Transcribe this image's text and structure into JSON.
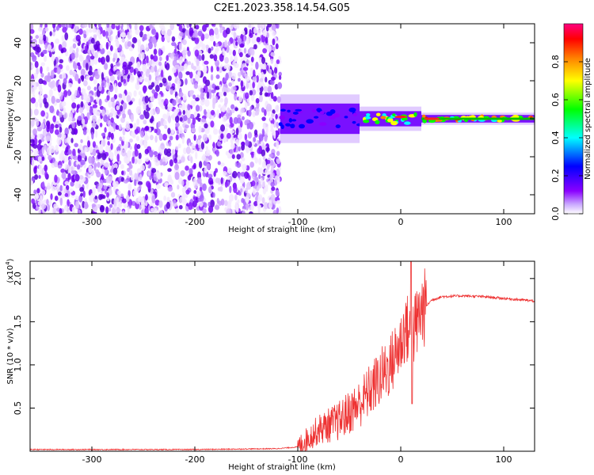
{
  "title": "C2E1.2023.358.14.54.G05",
  "chart_data": [
    {
      "type": "heatmap",
      "xlabel": "Height of straight line (km)",
      "ylabel": "Frequency (Hz)",
      "xlim": [
        -360,
        130
      ],
      "ylim": [
        -50,
        50
      ],
      "x_ticks": [
        -300,
        -200,
        -100,
        0,
        100
      ],
      "y_ticks": [
        -40,
        -20,
        0,
        20,
        40
      ],
      "x_tick_labels": [
        "-300",
        "-200",
        "-100",
        "0",
        "100"
      ],
      "y_tick_labels": [
        "-40",
        "-20",
        "0",
        "20",
        "40"
      ],
      "noise_region_x": [
        -360,
        -117
      ],
      "signal_band": {
        "center_hz": 0,
        "segments": [
          {
            "x_start": -117,
            "x_end": -40,
            "half_width_hz": 8,
            "peak_amplitude": 0.4
          },
          {
            "x_start": -40,
            "x_end": 20,
            "half_width_hz": 4,
            "peak_amplitude": 0.85
          },
          {
            "x_start": 20,
            "x_end": 130,
            "half_width_hz": 2,
            "peak_amplitude": 0.95
          }
        ]
      },
      "colorbar": {
        "label": "Normalized spectral amplitude",
        "range": [
          0,
          1
        ],
        "ticks": [
          0.0,
          0.2,
          0.4,
          0.6,
          0.8
        ],
        "tick_labels": [
          "0.0",
          "0.2",
          "0.4",
          "0.6",
          "0.8"
        ],
        "colors": [
          "#ffffff",
          "#8a00ff",
          "#0000ff",
          "#00ffff",
          "#00ff00",
          "#ffff00",
          "#ff8000",
          "#ff0000",
          "#ff0080"
        ]
      },
      "grid": false
    },
    {
      "type": "line",
      "xlabel": "Height of straight line (km)",
      "ylabel": "SNR (10 * v/v)",
      "y_multiplier": "(x10",
      "y_multiplier_exp": "4",
      "y_multiplier_close": ")",
      "xlim": [
        -360,
        130
      ],
      "ylim": [
        0,
        2.2
      ],
      "x_ticks": [
        -300,
        -200,
        -100,
        0,
        100
      ],
      "y_ticks": [
        0.5,
        1.0,
        1.5,
        2.0
      ],
      "x_tick_labels": [
        "-300",
        "-200",
        "-100",
        "0",
        "100"
      ],
      "y_tick_labels": [
        "0.5",
        "1.0",
        "1.5",
        "2.0"
      ],
      "color": "#ee3333",
      "series": [
        {
          "x": [
            -360,
            -300,
            -200,
            -120,
            -100,
            -90,
            -80,
            -60,
            -40,
            -30,
            -20,
            -10,
            0,
            5,
            10,
            20,
            30,
            40,
            60,
            80,
            100,
            130
          ],
          "y": [
            0.02,
            0.02,
            0.02,
            0.03,
            0.05,
            0.15,
            0.25,
            0.35,
            0.55,
            0.7,
            0.85,
            1.0,
            1.25,
            1.45,
            1.3,
            1.62,
            1.75,
            1.79,
            1.8,
            1.79,
            1.77,
            1.74
          ]
        }
      ],
      "grid": false
    }
  ]
}
